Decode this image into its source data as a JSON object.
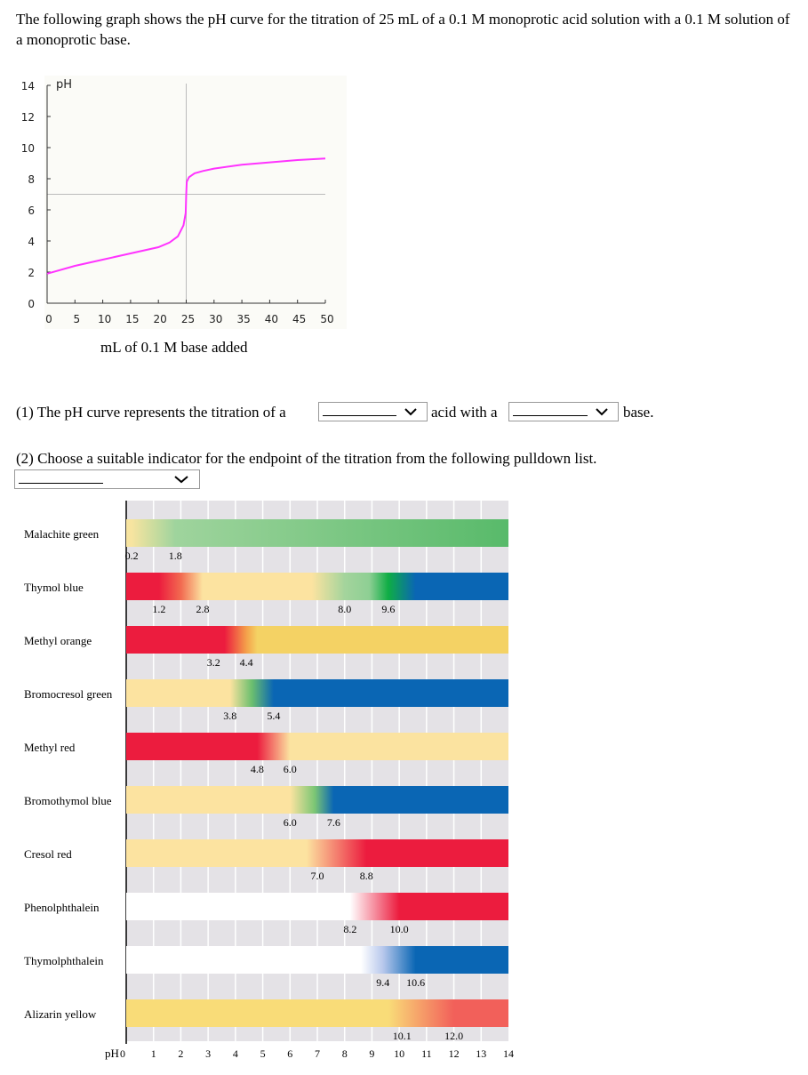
{
  "question": {
    "intro": "The following graph shows the pH curve for the titration of 25 mL of a 0.1 M monoprotic acid solution with a 0.1 M solution of a monoprotic base.",
    "part1_prefix": "(1) The pH curve represents the titration of a",
    "part1_mid": "acid with a",
    "part1_suffix": "base.",
    "part2": "(2) Choose a suitable indicator for the endpoint of the titration from the following pulldown list.",
    "select_acid": "",
    "select_base": "",
    "select_indicator": ""
  },
  "chart_data": [
    {
      "type": "line",
      "ylabel": "pH",
      "xlabel": "mL of 0.1 M base added",
      "xlim": [
        0,
        50
      ],
      "ylim": [
        0,
        14
      ],
      "xticks": [
        0,
        5,
        10,
        15,
        20,
        25,
        30,
        35,
        40,
        45,
        50
      ],
      "yticks": [
        0,
        2,
        4,
        6,
        8,
        10,
        12,
        14
      ],
      "line_color": "#ff33ff",
      "reference_lines": {
        "x": 25,
        "y": 7
      },
      "x": [
        0,
        5,
        10,
        15,
        20,
        22,
        23.5,
        24.5,
        24.9,
        25,
        25.1,
        25.5,
        26.5,
        28,
        30,
        35,
        40,
        45,
        50
      ],
      "y": [
        1.9,
        2.4,
        2.8,
        3.2,
        3.6,
        3.9,
        4.3,
        5.0,
        5.8,
        7.0,
        7.8,
        8.1,
        8.35,
        8.5,
        8.65,
        8.9,
        9.05,
        9.2,
        9.3
      ]
    },
    {
      "type": "table",
      "xlabel": "pH",
      "xticks": [
        0,
        1,
        2,
        3,
        4,
        5,
        6,
        7,
        8,
        9,
        10,
        11,
        12,
        13,
        14
      ],
      "indicators": [
        {
          "name": "Malachite green",
          "ranges": [
            "0.2",
            "1.8"
          ],
          "stops": [
            [
              0,
              "#f7e4a0"
            ],
            [
              0.2,
              "#f7e4a0"
            ],
            [
              1.8,
              "#9fd49d"
            ],
            [
              14,
              "#58ba6a"
            ]
          ]
        },
        {
          "name": "Thymol blue",
          "ranges": [
            "1.2",
            "2.8",
            "8.0",
            "9.6"
          ],
          "stops": [
            [
              0,
              "#ec1c3e"
            ],
            [
              1.2,
              "#ec1c3e"
            ],
            [
              2,
              "#f26a50"
            ],
            [
              2.8,
              "#fce3a0"
            ],
            [
              6.8,
              "#fce3a0"
            ],
            [
              8.0,
              "#a4d49c"
            ],
            [
              8.9,
              "#8ecf94"
            ],
            [
              9.6,
              "#0fad45"
            ],
            [
              10.6,
              "#0a66b4"
            ],
            [
              14,
              "#0a66b4"
            ]
          ]
        },
        {
          "name": "Methyl orange",
          "ranges": [
            "3.2",
            "4.4"
          ],
          "stops": [
            [
              0,
              "#ec1c3e"
            ],
            [
              3.6,
              "#ec1c3e"
            ],
            [
              4.4,
              "#f4a04a"
            ],
            [
              4.8,
              "#f4d264"
            ],
            [
              14,
              "#f4d264"
            ]
          ]
        },
        {
          "name": "Bromocresol green",
          "ranges": [
            "3.8",
            "5.4"
          ],
          "stops": [
            [
              0,
              "#fce3a0"
            ],
            [
              3.8,
              "#fce3a0"
            ],
            [
              4.6,
              "#6cbf6e"
            ],
            [
              5.4,
              "#0a66b4"
            ],
            [
              14,
              "#0a66b4"
            ]
          ]
        },
        {
          "name": "Methyl red",
          "ranges": [
            "4.8",
            "6.0"
          ],
          "stops": [
            [
              0,
              "#ec1c3e"
            ],
            [
              4.8,
              "#ec1c3e"
            ],
            [
              6.0,
              "#fbe3a0"
            ],
            [
              14,
              "#fbe3a0"
            ]
          ]
        },
        {
          "name": "Bromothymol blue",
          "ranges": [
            "6.0",
            "7.6"
          ],
          "stops": [
            [
              0,
              "#fce3a0"
            ],
            [
              6.0,
              "#fce3a0"
            ],
            [
              6.9,
              "#7cc674"
            ],
            [
              7.6,
              "#0a66b4"
            ],
            [
              14,
              "#0a66b4"
            ]
          ]
        },
        {
          "name": "Cresol red",
          "ranges": [
            "7.0",
            "8.8"
          ],
          "stops": [
            [
              0,
              "#fce3a0"
            ],
            [
              6.6,
              "#fce3a0"
            ],
            [
              8.8,
              "#ec1c3e"
            ],
            [
              14,
              "#ec1c3e"
            ]
          ]
        },
        {
          "name": "Phenolphthalein",
          "ranges": [
            "8.2",
            "10.0"
          ],
          "stops": [
            [
              0,
              "#ffffff"
            ],
            [
              8.2,
              "#ffffff"
            ],
            [
              10.0,
              "#ec1c3e"
            ],
            [
              14,
              "#ec1c3e"
            ]
          ]
        },
        {
          "name": "Thymolphthalein",
          "ranges": [
            "9.4",
            "10.6"
          ],
          "stops": [
            [
              0,
              "#ffffff"
            ],
            [
              8.6,
              "#ffffff"
            ],
            [
              9.4,
              "#b8c8ec"
            ],
            [
              10.6,
              "#0a66b4"
            ],
            [
              14,
              "#0a66b4"
            ]
          ]
        },
        {
          "name": "Alizarin yellow",
          "ranges": [
            "10.1",
            "12.0"
          ],
          "stops": [
            [
              0,
              "#f9dc78"
            ],
            [
              9.6,
              "#f9dc78"
            ],
            [
              12.0,
              "#f2605a"
            ],
            [
              14,
              "#f2605a"
            ]
          ]
        }
      ]
    }
  ]
}
